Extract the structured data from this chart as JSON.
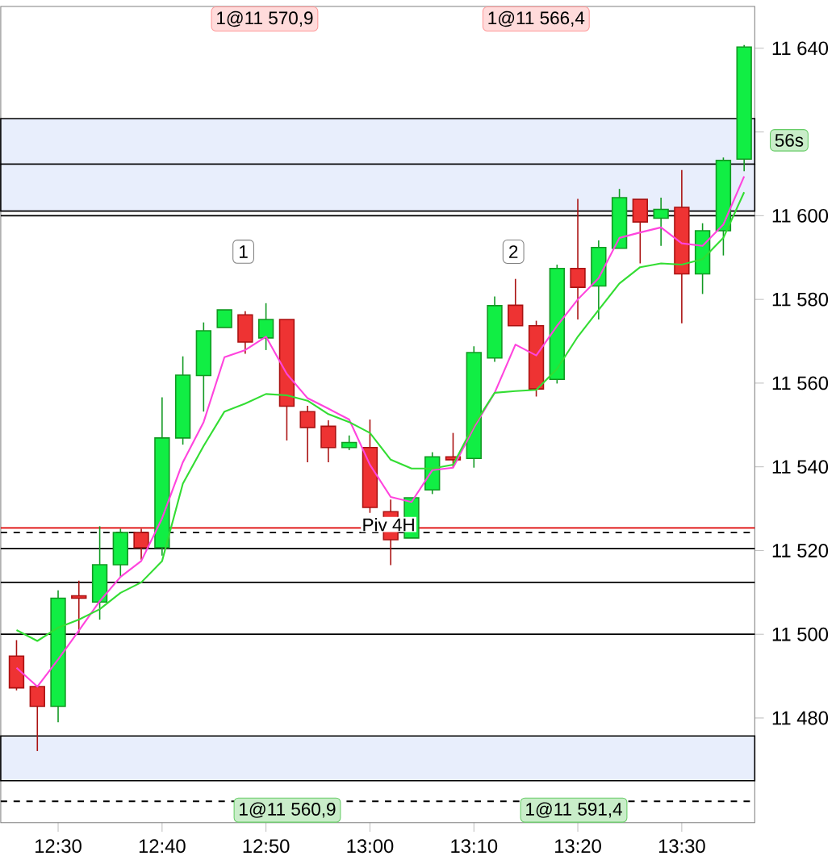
{
  "chart_data": {
    "type": "candlestick",
    "x": [
      12.4333,
      12.4667,
      12.5,
      12.5333,
      12.5667,
      12.6,
      12.6333,
      12.6667,
      12.7,
      12.7333,
      12.7667,
      12.8,
      12.8333,
      12.8667,
      12.9,
      12.9333,
      12.9667,
      13.0,
      13.0333,
      13.0667,
      13.1,
      13.1333,
      13.1667,
      13.2,
      13.2333,
      13.2667,
      13.3,
      13.3333,
      13.3667,
      13.4,
      13.4333,
      13.4667,
      13.5,
      13.5333,
      13.5667,
      13.6
    ],
    "ohlc": [
      [
        11494.8,
        11498.6,
        11486.6,
        11487.2
      ],
      [
        11487.5,
        11487.5,
        11472.1,
        11482.8
      ],
      [
        11482.8,
        11510.5,
        11479.0,
        11508.6
      ],
      [
        11509.2,
        11512.8,
        11500.3,
        11508.6
      ],
      [
        11507.7,
        11525.8,
        11503.5,
        11516.6
      ],
      [
        11516.6,
        11525.2,
        11513.7,
        11524.3
      ],
      [
        11524.3,
        11525.2,
        11517.8,
        11520.7
      ],
      [
        11520.7,
        11556.6,
        11518.8,
        11546.9
      ],
      [
        11546.9,
        11566.4,
        11545.3,
        11561.9
      ],
      [
        11561.8,
        11574.5,
        11553.2,
        11572.5
      ],
      [
        11573.3,
        11577.5,
        11573.3,
        11577.5
      ],
      [
        11576.3,
        11577.2,
        11567.0,
        11569.8
      ],
      [
        11570.8,
        11579.1,
        11567.9,
        11575.2
      ],
      [
        11575.2,
        11575.2,
        11546.3,
        11554.5
      ],
      [
        11553.2,
        11554.6,
        11541.1,
        11549.4
      ],
      [
        11549.7,
        11551.1,
        11541.1,
        11544.6
      ],
      [
        11544.6,
        11547.5,
        11544.0,
        11545.8
      ],
      [
        11544.6,
        11551.3,
        11529.0,
        11530.3
      ],
      [
        11529.3,
        11532.2,
        11516.5,
        11522.6
      ],
      [
        11523.0,
        11532.6,
        11523.0,
        11532.6
      ],
      [
        11534.5,
        11543.5,
        11533.5,
        11542.4
      ],
      [
        11542.4,
        11548.1,
        11539.8,
        11541.7
      ],
      [
        11542.0,
        11568.8,
        11539.8,
        11567.3
      ],
      [
        11566.0,
        11580.7,
        11565.1,
        11578.5
      ],
      [
        11578.6,
        11584.9,
        11573.7,
        11573.7
      ],
      [
        11573.7,
        11574.9,
        11556.8,
        11558.6
      ],
      [
        11560.9,
        11588.3,
        11559.9,
        11587.4
      ],
      [
        11587.4,
        11604.0,
        11575.2,
        11582.9
      ],
      [
        11583.2,
        11594.1,
        11575.2,
        11592.4
      ],
      [
        11592.2,
        11606.4,
        11592.2,
        11604.3
      ],
      [
        11603.9,
        11603.9,
        11588.6,
        11598.5
      ],
      [
        11599.4,
        11604.3,
        11592.8,
        11601.5
      ],
      [
        11602.0,
        11610.9,
        11574.3,
        11586.1
      ],
      [
        11586.1,
        11598.2,
        11581.3,
        11596.4
      ],
      [
        11596.4,
        11613.9,
        11590.5,
        11613.2
      ],
      [
        11613.5,
        11640.8,
        11610.6,
        11640.3
      ]
    ],
    "series": [
      {
        "type": "line",
        "color": "#ff44dd",
        "x": [
          12.4333,
          12.4667,
          12.5,
          12.5333,
          12.5667,
          12.6,
          12.6333,
          12.6667,
          12.7,
          12.7333,
          12.7667,
          12.8,
          12.8333,
          12.8667,
          12.9,
          12.9333,
          12.9667,
          13.0,
          13.0333,
          13.0667,
          13.1,
          13.1333,
          13.1667,
          13.2,
          13.2333,
          13.2667,
          13.3,
          13.3333,
          13.3667,
          13.4,
          13.4333,
          13.4667,
          13.5,
          13.5333,
          13.5667,
          13.6
        ],
        "values": [
          11492.0,
          11487.5,
          11494.0,
          11500.9,
          11507.9,
          11513.7,
          11517.5,
          11527.7,
          11541.1,
          11550.7,
          11566.2,
          11567.9,
          11571.1,
          11562.2,
          11556.4,
          11553.9,
          11551.3,
          11540.5,
          11532.8,
          11531.6,
          11539.2,
          11539.8,
          11549.4,
          11557.7,
          11569.2,
          11566.6,
          11573.7,
          11580.0,
          11585.1,
          11594.7,
          11596.0,
          11597.2,
          11593.4,
          11592.8,
          11597.9,
          11609.4
        ]
      },
      {
        "type": "line",
        "color": "#33dd33",
        "x": [
          12.4333,
          12.4667,
          12.5,
          12.5333,
          12.5667,
          12.6,
          12.6333,
          12.6667,
          12.7,
          12.7333,
          12.7667,
          12.8,
          12.8333,
          12.8667,
          12.9,
          12.9333,
          12.9667,
          13.0,
          13.0333,
          13.0667,
          13.1,
          13.1333,
          13.1667,
          13.2,
          13.2333,
          13.2667,
          13.3,
          13.3333,
          13.3667,
          13.4,
          13.4333,
          13.4667,
          13.5,
          13.5333,
          13.5667,
          13.6
        ],
        "values": [
          11501.0,
          11498.4,
          11501.6,
          11503.5,
          11506.0,
          11509.9,
          11512.4,
          11517.5,
          11536.0,
          11545.0,
          11553.2,
          11555.1,
          11557.4,
          11557.1,
          11555.8,
          11552.6,
          11550.7,
          11548.1,
          11541.7,
          11539.6,
          11539.6,
          11540.5,
          11550.0,
          11557.7,
          11558.1,
          11558.4,
          11563.4,
          11571.1,
          11577.5,
          11583.8,
          11587.7,
          11588.6,
          11588.3,
          11589.6,
          11594.7,
          11605.6
        ]
      }
    ],
    "xlim": [
      12.408,
      13.617
    ],
    "ylim": [
      11455,
      11650
    ],
    "xticks": [
      {
        "value": 12.5,
        "label": "12:30"
      },
      {
        "value": 12.6667,
        "label": "12:40"
      },
      {
        "value": 12.8333,
        "label": "12:50"
      },
      {
        "value": 13.0,
        "label": "13:00"
      },
      {
        "value": 13.1667,
        "label": "13:10"
      },
      {
        "value": 13.3333,
        "label": "13:20"
      },
      {
        "value": 13.5,
        "label": "13:30"
      }
    ],
    "yticks": [
      {
        "value": 11480,
        "label": "11 480"
      },
      {
        "value": 11500,
        "label": "11 500"
      },
      {
        "value": 11520,
        "label": "11 520"
      },
      {
        "value": 11540,
        "label": "11 540"
      },
      {
        "value": 11560,
        "label": "11 560"
      },
      {
        "value": 11580,
        "label": "11 580"
      },
      {
        "value": 11600,
        "label": "11 600"
      },
      {
        "value": 11620,
        "label": null
      },
      {
        "value": 11640,
        "label": "11 640"
      }
    ],
    "bands": [
      {
        "axis": "y",
        "from": 11612.3,
        "to": 11623.2,
        "color": "#e8eefc"
      },
      {
        "axis": "y",
        "from": 11601.1,
        "to": 11612.3,
        "color": "#e8eefc"
      },
      {
        "axis": "y",
        "from": 11465.0,
        "to": 11475.7,
        "color": "#e8eefc"
      }
    ],
    "ref_lines": [
      {
        "axis": "y",
        "value": 11600,
        "color": "#000000"
      },
      {
        "axis": "y",
        "value": 11525.4,
        "color": "#dd0000"
      },
      {
        "axis": "y",
        "value": 11524.3,
        "color": "#000000",
        "line_style": "dashed"
      },
      {
        "axis": "y",
        "value": 11520.5,
        "color": "#000000"
      },
      {
        "axis": "y",
        "value": 11512.4,
        "color": "#000000"
      },
      {
        "axis": "y",
        "value": 11500,
        "color": "#000000"
      },
      {
        "axis": "y",
        "value": 11460.1,
        "color": "#000000",
        "line_style": "dashed"
      }
    ],
    "annotations": [
      "1@11 570,9",
      "1@11 566,4",
      "1@11 560,9",
      "1@11 591,4",
      "56s",
      {
        "text": "1",
        "x": 12.797,
        "y": 11591.4
      },
      {
        "text": "2",
        "x": 13.23,
        "y": 11591.4
      },
      {
        "text": "Piv 4H",
        "x": 13.03,
        "y": 11524.3
      }
    ]
  }
}
